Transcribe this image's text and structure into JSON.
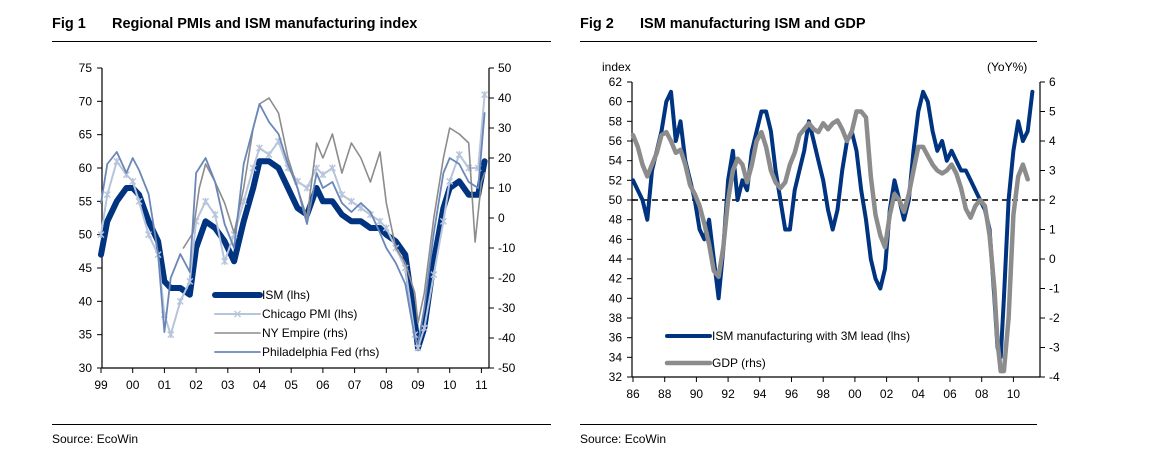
{
  "figures": [
    {
      "number": "Fig 1",
      "title": "Regional PMIs and ISM manufacturing index",
      "source": "Source: EcoWin"
    },
    {
      "number": "Fig 2",
      "title": "ISM manufacturing ISM and GDP",
      "source": "Source: EcoWin"
    }
  ],
  "chart_data": [
    {
      "type": "line",
      "title": "Regional PMIs and ISM manufacturing index",
      "xlabel": "",
      "ylabel_left": "",
      "ylabel_right": "",
      "x_tick_labels": [
        "99",
        "00",
        "01",
        "02",
        "03",
        "04",
        "05",
        "06",
        "07",
        "08",
        "09",
        "10",
        "11"
      ],
      "x_range": [
        1999.0,
        2011.2
      ],
      "ylim_left": [
        30,
        75
      ],
      "y_ticks_left": [
        30,
        35,
        40,
        45,
        50,
        55,
        60,
        65,
        70,
        75
      ],
      "ylim_right": [
        -50,
        50
      ],
      "y_ticks_right": [
        -50,
        -40,
        -30,
        -20,
        -10,
        0,
        10,
        20,
        30,
        40,
        50
      ],
      "grid": false,
      "legend_position": "bottom-center",
      "series": [
        {
          "name": "ISM (lhs)",
          "axis": "left",
          "color": "#003380",
          "style": "thick",
          "x": [
            1999.0,
            1999.2,
            1999.5,
            1999.8,
            2000.0,
            2000.2,
            2000.5,
            2000.8,
            2001.0,
            2001.2,
            2001.5,
            2001.8,
            2002.0,
            2002.3,
            2002.6,
            2002.9,
            2003.2,
            2003.5,
            2003.8,
            2004.0,
            2004.3,
            2004.6,
            2004.9,
            2005.2,
            2005.5,
            2005.8,
            2006.0,
            2006.3,
            2006.6,
            2006.9,
            2007.2,
            2007.5,
            2007.8,
            2008.0,
            2008.3,
            2008.6,
            2008.9,
            2009.0,
            2009.2,
            2009.5,
            2009.8,
            2010.0,
            2010.3,
            2010.6,
            2010.9,
            2011.1
          ],
          "y": [
            47,
            52,
            55,
            57,
            57,
            56,
            52,
            49,
            43,
            42,
            42,
            41,
            48,
            52,
            51,
            49,
            46,
            52,
            57,
            61,
            61,
            60,
            57,
            54,
            53,
            57,
            55,
            55,
            53,
            52,
            52,
            51,
            51,
            50,
            49,
            47,
            37,
            33,
            36,
            46,
            54,
            57,
            58,
            56,
            56,
            61
          ]
        },
        {
          "name": "Chicago PMI (lhs)",
          "axis": "left",
          "color": "#b7c5dc",
          "style": "cross-markers",
          "x": [
            1999.0,
            1999.2,
            1999.5,
            1999.8,
            2000.0,
            2000.2,
            2000.5,
            2000.8,
            2001.0,
            2001.2,
            2001.5,
            2001.8,
            2002.0,
            2002.3,
            2002.6,
            2002.9,
            2003.2,
            2003.5,
            2003.8,
            2004.0,
            2004.3,
            2004.6,
            2004.9,
            2005.2,
            2005.5,
            2005.8,
            2006.0,
            2006.3,
            2006.6,
            2006.9,
            2007.2,
            2007.5,
            2007.8,
            2008.0,
            2008.3,
            2008.6,
            2008.9,
            2009.0,
            2009.2,
            2009.5,
            2009.8,
            2010.0,
            2010.3,
            2010.6,
            2010.9,
            2011.1
          ],
          "y": [
            50,
            56,
            61,
            59,
            58,
            55,
            50,
            47,
            38,
            35,
            40,
            43,
            52,
            55,
            53,
            46,
            50,
            55,
            60,
            63,
            62,
            64,
            60,
            58,
            57,
            60,
            59,
            60,
            56,
            55,
            54,
            53,
            52,
            51,
            48,
            45,
            35,
            33,
            36,
            44,
            52,
            58,
            62,
            60,
            60,
            71
          ]
        },
        {
          "name": "NY Empire (rhs)",
          "axis": "right",
          "color": "#8c8c8c",
          "style": "thin",
          "x": [
            2001.6,
            2001.9,
            2002.1,
            2002.3,
            2002.6,
            2002.9,
            2003.2,
            2003.5,
            2003.8,
            2004.0,
            2004.3,
            2004.6,
            2004.9,
            2005.2,
            2005.5,
            2005.8,
            2006.0,
            2006.3,
            2006.6,
            2006.9,
            2007.2,
            2007.5,
            2007.8,
            2008.0,
            2008.3,
            2008.6,
            2008.9,
            2009.0,
            2009.2,
            2009.5,
            2009.8,
            2010.0,
            2010.3,
            2010.6,
            2010.8,
            2011.0,
            2011.1
          ],
          "y": [
            -10,
            -5,
            10,
            18,
            12,
            5,
            -5,
            10,
            30,
            38,
            40,
            35,
            20,
            10,
            0,
            25,
            20,
            28,
            15,
            25,
            20,
            12,
            22,
            5,
            -10,
            -15,
            -25,
            -35,
            -25,
            0,
            20,
            30,
            28,
            25,
            -8,
            12,
            15
          ]
        },
        {
          "name": "Philadelphia Fed (rhs)",
          "axis": "right",
          "color": "#6a87b8",
          "style": "thin",
          "x": [
            1999.0,
            1999.2,
            1999.5,
            1999.8,
            2000.0,
            2000.2,
            2000.5,
            2000.8,
            2001.0,
            2001.2,
            2001.5,
            2001.8,
            2002.0,
            2002.3,
            2002.6,
            2002.9,
            2003.2,
            2003.5,
            2003.8,
            2004.0,
            2004.3,
            2004.6,
            2004.9,
            2005.2,
            2005.5,
            2005.8,
            2006.0,
            2006.3,
            2006.6,
            2006.9,
            2007.2,
            2007.5,
            2007.8,
            2008.0,
            2008.3,
            2008.6,
            2008.9,
            2009.0,
            2009.2,
            2009.5,
            2009.8,
            2010.0,
            2010.3,
            2010.6,
            2010.9,
            2011.1
          ],
          "y": [
            5,
            18,
            22,
            15,
            20,
            16,
            8,
            -12,
            -38,
            -20,
            -12,
            -18,
            15,
            20,
            12,
            -2,
            -10,
            18,
            30,
            38,
            32,
            28,
            18,
            10,
            -2,
            15,
            10,
            12,
            5,
            2,
            5,
            2,
            -5,
            -10,
            -15,
            -22,
            -40,
            -42,
            -30,
            -5,
            15,
            20,
            18,
            12,
            10,
            35
          ]
        }
      ]
    },
    {
      "type": "line",
      "title": "ISM manufacturing ISM and GDP",
      "xlabel": "",
      "ylabel_left": "index",
      "ylabel_right": "(YoY%)",
      "x_tick_labels": [
        "86",
        "88",
        "90",
        "92",
        "94",
        "96",
        "98",
        "00",
        "02",
        "04",
        "06",
        "08",
        "10"
      ],
      "x_range": [
        1986.0,
        2011.8
      ],
      "ylim_left": [
        32,
        62
      ],
      "y_ticks_left": [
        32,
        34,
        36,
        38,
        40,
        42,
        44,
        46,
        48,
        50,
        52,
        54,
        56,
        58,
        60,
        62
      ],
      "ylim_right": [
        -4,
        6
      ],
      "y_ticks_right": [
        -4,
        -3,
        -2,
        -1,
        0,
        1,
        2,
        3,
        4,
        5,
        6
      ],
      "reference_line": {
        "axis": "left",
        "value": 50,
        "style": "dashed"
      },
      "grid": false,
      "legend_position": "bottom-left",
      "series": [
        {
          "name": "ISM manufacturing with 3M lead (lhs)",
          "axis": "left",
          "color": "#003380",
          "x": [
            1986.0,
            1986.3,
            1986.6,
            1986.9,
            1987.2,
            1987.5,
            1987.8,
            1988.1,
            1988.4,
            1988.7,
            1989.0,
            1989.3,
            1989.6,
            1989.9,
            1990.2,
            1990.5,
            1990.8,
            1991.1,
            1991.4,
            1991.7,
            1992.0,
            1992.3,
            1992.6,
            1992.9,
            1993.2,
            1993.5,
            1993.8,
            1994.1,
            1994.4,
            1994.7,
            1995.0,
            1995.3,
            1995.6,
            1995.9,
            1996.2,
            1996.5,
            1996.8,
            1997.1,
            1997.4,
            1997.7,
            1998.0,
            1998.3,
            1998.6,
            1998.9,
            1999.2,
            1999.5,
            1999.8,
            2000.1,
            2000.4,
            2000.7,
            2001.0,
            2001.3,
            2001.6,
            2001.9,
            2002.2,
            2002.5,
            2002.8,
            2003.1,
            2003.4,
            2003.7,
            2004.0,
            2004.3,
            2004.6,
            2004.9,
            2005.2,
            2005.5,
            2005.8,
            2006.1,
            2006.4,
            2006.7,
            2007.0,
            2007.3,
            2007.6,
            2007.9,
            2008.2,
            2008.5,
            2008.8,
            2009.0,
            2009.2,
            2009.4,
            2009.7,
            2010.0,
            2010.3,
            2010.6,
            2010.9,
            2011.2
          ],
          "y": [
            52,
            51,
            50,
            48,
            53,
            55,
            57,
            60,
            61,
            56,
            58,
            54,
            52,
            50,
            47,
            46,
            48,
            44,
            40,
            45,
            52,
            55,
            50,
            52,
            51,
            55,
            57,
            59,
            59,
            57,
            53,
            50,
            47,
            47,
            51,
            53,
            55,
            58,
            56,
            54,
            52,
            49,
            47,
            49,
            53,
            56,
            57,
            55,
            51,
            48,
            44,
            42,
            41,
            43,
            49,
            52,
            50,
            48,
            50,
            55,
            59,
            61,
            60,
            57,
            55,
            56,
            54,
            55,
            54,
            53,
            53,
            52,
            51,
            50,
            49,
            47,
            40,
            35,
            34,
            40,
            50,
            55,
            58,
            56,
            57,
            61
          ]
        },
        {
          "name": "GDP (rhs)",
          "axis": "right",
          "color": "#8c8c8c",
          "x": [
            1986.0,
            1986.3,
            1986.6,
            1986.9,
            1987.2,
            1987.5,
            1987.8,
            1988.1,
            1988.4,
            1988.7,
            1989.0,
            1989.3,
            1989.6,
            1989.9,
            1990.2,
            1990.5,
            1990.8,
            1991.1,
            1991.4,
            1991.7,
            1992.0,
            1992.3,
            1992.6,
            1992.9,
            1993.2,
            1993.5,
            1993.8,
            1994.1,
            1994.4,
            1994.7,
            1995.0,
            1995.3,
            1995.6,
            1995.9,
            1996.2,
            1996.5,
            1996.8,
            1997.1,
            1997.4,
            1997.7,
            1998.0,
            1998.3,
            1998.6,
            1998.9,
            1999.2,
            1999.5,
            1999.8,
            2000.1,
            2000.4,
            2000.7,
            2001.0,
            2001.3,
            2001.6,
            2001.9,
            2002.2,
            2002.5,
            2002.8,
            2003.1,
            2003.4,
            2003.7,
            2004.0,
            2004.3,
            2004.6,
            2004.9,
            2005.2,
            2005.5,
            2005.8,
            2006.1,
            2006.4,
            2006.7,
            2007.0,
            2007.3,
            2007.6,
            2007.9,
            2008.2,
            2008.5,
            2008.8,
            2009.0,
            2009.2,
            2009.4,
            2009.7,
            2010.0,
            2010.3,
            2010.6,
            2010.9
          ],
          "y": [
            4.2,
            3.8,
            3.2,
            2.8,
            3.2,
            3.6,
            4.2,
            4.3,
            4.0,
            3.6,
            3.7,
            3.2,
            2.5,
            2.2,
            1.8,
            1.2,
            0.5,
            -0.4,
            -0.6,
            0.4,
            2.0,
            3.0,
            3.4,
            3.2,
            2.6,
            3.2,
            4.0,
            4.3,
            3.8,
            3.0,
            2.6,
            2.4,
            2.6,
            3.2,
            3.6,
            4.2,
            4.4,
            4.6,
            4.4,
            4.3,
            4.6,
            4.4,
            4.6,
            4.7,
            4.4,
            4.0,
            4.3,
            5.0,
            5.0,
            4.8,
            2.8,
            1.5,
            0.8,
            0.4,
            1.5,
            2.2,
            2.0,
            1.6,
            2.2,
            3.0,
            3.8,
            3.8,
            3.5,
            3.2,
            3.0,
            2.9,
            3.0,
            3.2,
            2.9,
            2.4,
            1.7,
            1.4,
            1.8,
            2.0,
            1.8,
            0.8,
            -1.0,
            -2.8,
            -3.8,
            -3.8,
            -2.0,
            1.5,
            2.8,
            3.2,
            2.7
          ]
        }
      ]
    }
  ]
}
